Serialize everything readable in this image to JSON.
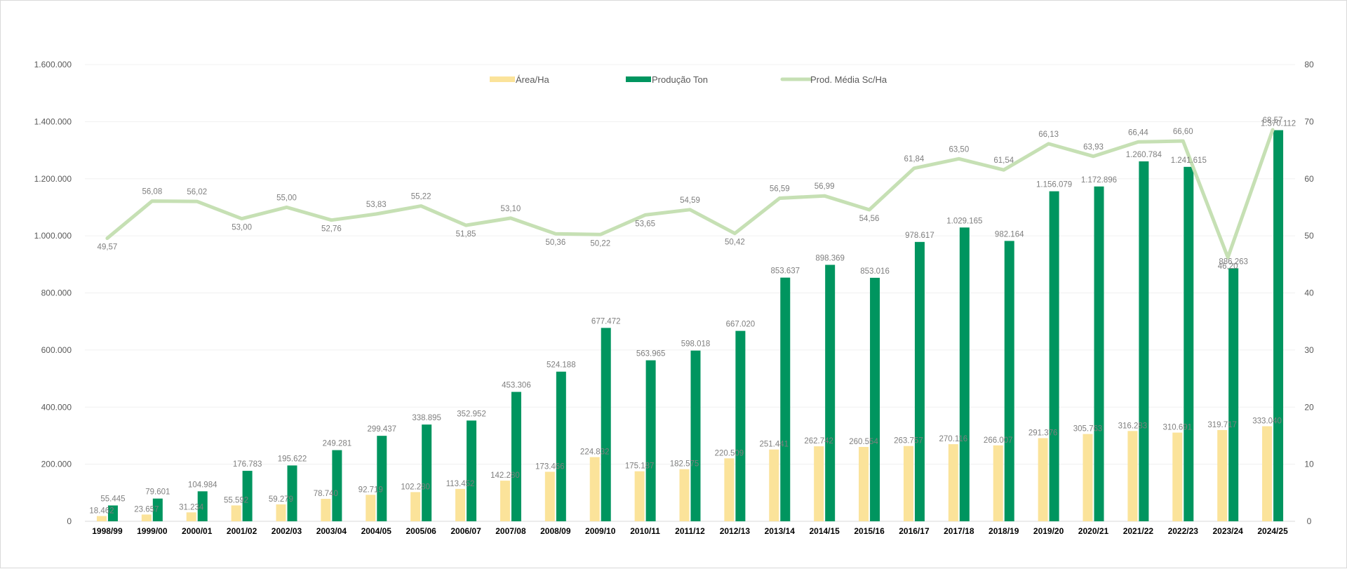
{
  "chart_data": {
    "type": "bar",
    "categories": [
      "1998/99",
      "1999/00",
      "2000/01",
      "2001/02",
      "2002/03",
      "2003/04",
      "2004/05",
      "2005/06",
      "2006/07",
      "2007/08",
      "2008/09",
      "2009/10",
      "2010/11",
      "2011/12",
      "2012/13",
      "2013/14",
      "2014/15",
      "2015/16",
      "2016/17",
      "2017/18",
      "2018/19",
      "2019/20",
      "2020/21",
      "2021/22",
      "2022/23",
      "2023/24",
      "2024/25"
    ],
    "series": [
      {
        "name": "Área/Ha",
        "kind": "bar",
        "axis": "left",
        "color": "#fbe39a",
        "values": [
          18462,
          23657,
          31234,
          55592,
          59279,
          78740,
          92719,
          102280,
          113452,
          142280,
          173466,
          224832,
          175187,
          182575,
          220509,
          251441,
          262742,
          260554,
          263757,
          270116,
          266007,
          291376,
          305763,
          316283,
          310691,
          319717,
          333040
        ],
        "labels": [
          "18.462",
          "23.657",
          "31.234",
          "55.592",
          "59.279",
          "78.740",
          "92.719",
          "102.280",
          "113.452",
          "142.280",
          "173.466",
          "224.832",
          "175.187",
          "182.575",
          "220.509",
          "251.441",
          "262.742",
          "260.554",
          "263.757",
          "270.116",
          "266.007",
          "291.376",
          "305.763",
          "316.283",
          "310.691",
          "319.717",
          "333.040"
        ]
      },
      {
        "name": "Produção Ton",
        "kind": "bar",
        "axis": "left",
        "color": "#00955f",
        "values": [
          55445,
          79601,
          104984,
          176783,
          195622,
          249281,
          299437,
          338895,
          352952,
          453306,
          524188,
          677472,
          563965,
          598018,
          667020,
          853637,
          898369,
          853016,
          978617,
          1029165,
          982164,
          1156079,
          1172896,
          1260784,
          1241615,
          886263,
          1370112
        ],
        "labels": [
          "55.445",
          "79.601",
          "104.984",
          "176.783",
          "195.622",
          "249.281",
          "299.437",
          "338.895",
          "352.952",
          "453.306",
          "524.188",
          "677.472",
          "563.965",
          "598.018",
          "667.020",
          "853.637",
          "898.369",
          "853.016",
          "978.617",
          "1.029.165",
          "982.164",
          "1.156.079",
          "1.172.896",
          "1.260.784",
          "1.241.615",
          "886.263",
          "1.370.112"
        ]
      },
      {
        "name": "Prod. Média Sc/Ha",
        "kind": "line",
        "axis": "right",
        "color": "#c6e0b4",
        "values": [
          49.57,
          56.08,
          56.02,
          53.0,
          55.0,
          52.76,
          53.83,
          55.22,
          51.85,
          53.1,
          50.36,
          50.22,
          53.65,
          54.59,
          50.42,
          56.59,
          56.99,
          54.56,
          61.84,
          63.5,
          61.54,
          66.13,
          63.93,
          66.44,
          66.6,
          46.2,
          68.57
        ],
        "labels": [
          "49,57",
          "56,08",
          "56,02",
          "53,00",
          "55,00",
          "52,76",
          "53,83",
          "55,22",
          "51,85",
          "53,10",
          "50,36",
          "50,22",
          "53,65",
          "54,59",
          "50,42",
          "56,59",
          "56,99",
          "54,56",
          "61,84",
          "63,50",
          "61,54",
          "66,13",
          "63,93",
          "66,44",
          "66,60",
          "46,20",
          "68,57"
        ]
      }
    ],
    "y_left": {
      "min": 0,
      "max": 1600000,
      "ticks": [
        "0",
        "200.000",
        "400.000",
        "600.000",
        "800.000",
        "1.000.000",
        "1.200.000",
        "1.400.000",
        "1.600.000"
      ]
    },
    "y_right": {
      "min": 0,
      "max": 80,
      "ticks": [
        "0",
        "10",
        "20",
        "30",
        "40",
        "50",
        "60",
        "70",
        "80"
      ]
    },
    "grid": true,
    "legend_position": "top-center"
  }
}
